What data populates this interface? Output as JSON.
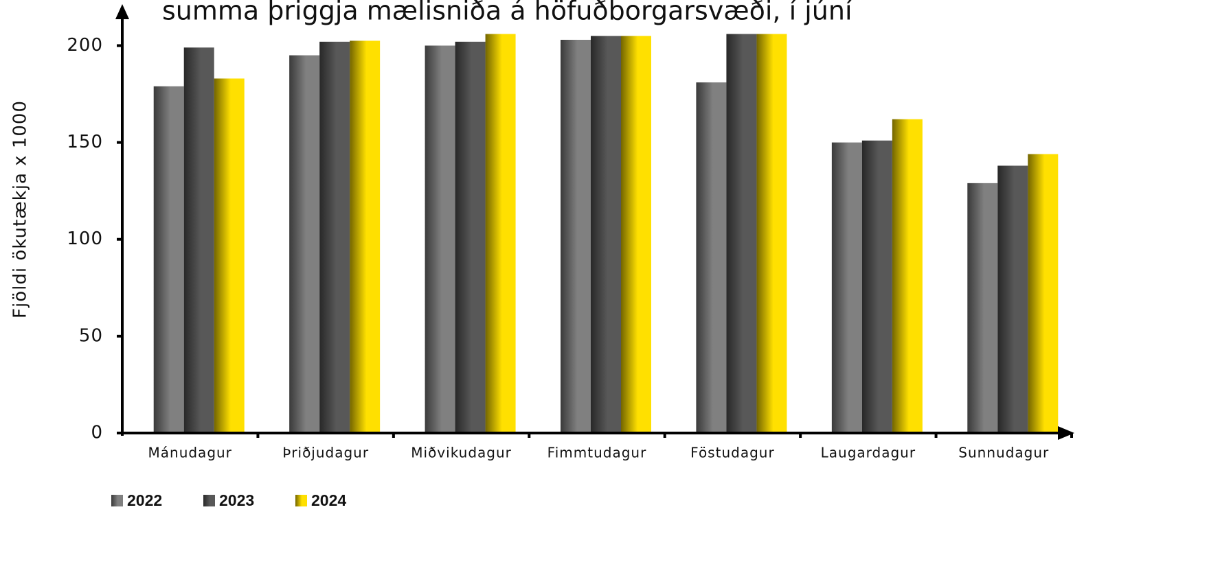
{
  "chart_data": {
    "type": "bar",
    "title": "summa þriggja mælisniða á höfuðborgarsvæði, í júní",
    "y_label": "Fjöldi ökutækja x 1000",
    "categories": [
      "Mánudagur",
      "Þriðjudagur",
      "Miðvikudagur",
      "Fimmtudagur",
      "Föstudagur",
      "Laugardagur",
      "Sunnudagur"
    ],
    "series": [
      {
        "name": "2022",
        "color": "#808080",
        "values": [
          179,
          195,
          200,
          203,
          181,
          150,
          129
        ]
      },
      {
        "name": "2023",
        "color": "#585858",
        "values": [
          199,
          202,
          202,
          205,
          206,
          151,
          138
        ]
      },
      {
        "name": "2024",
        "color": "#ffe000",
        "values": [
          183,
          202.5,
          206,
          205,
          206,
          162,
          144
        ]
      }
    ],
    "ylim": [
      0,
      220
    ],
    "yticks": [
      0,
      50,
      100,
      150,
      200
    ],
    "grid": false,
    "legend": "bottom-left"
  }
}
